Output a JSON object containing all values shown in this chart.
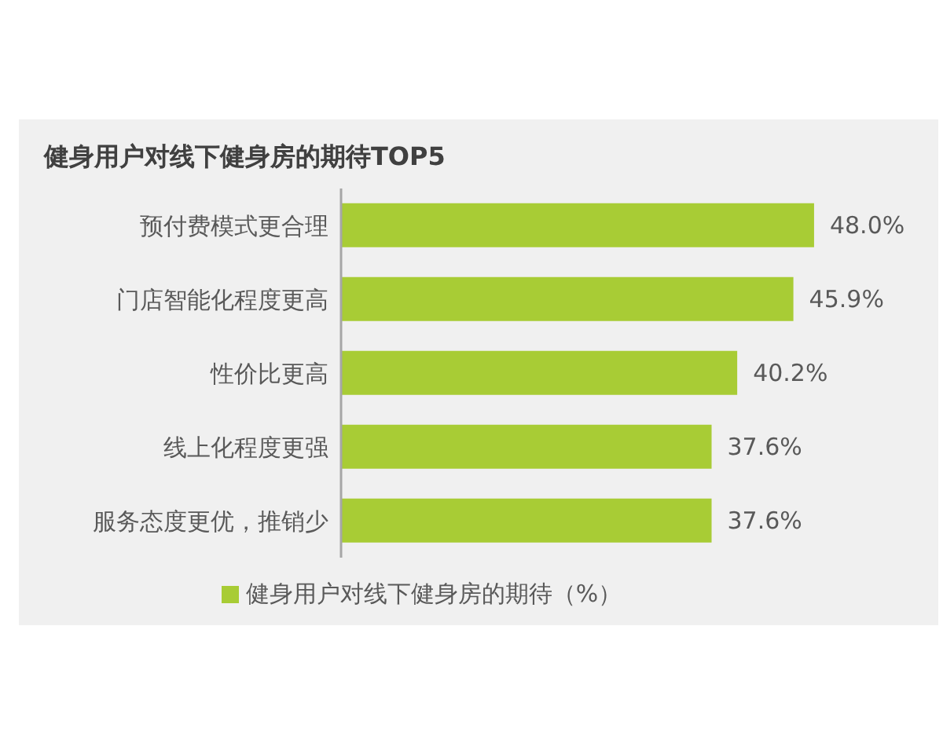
{
  "chart_data": {
    "type": "bar",
    "orientation": "horizontal",
    "title": "健身用户对线下健身房的期待TOP5",
    "categories": [
      "预付费模式更合理",
      "门店智能化程度更高",
      "性价比更高",
      "线上化程度更强",
      "服务态度更优，推销少"
    ],
    "series": [
      {
        "name": "健身用户对线下健身房的期待（%）",
        "color": "#a8cc35",
        "values": [
          48.0,
          45.9,
          40.2,
          37.6,
          37.6
        ],
        "value_labels": [
          "48.0%",
          "45.9%",
          "40.2%",
          "37.6%",
          "37.6%"
        ]
      }
    ],
    "legend": "bottom"
  }
}
